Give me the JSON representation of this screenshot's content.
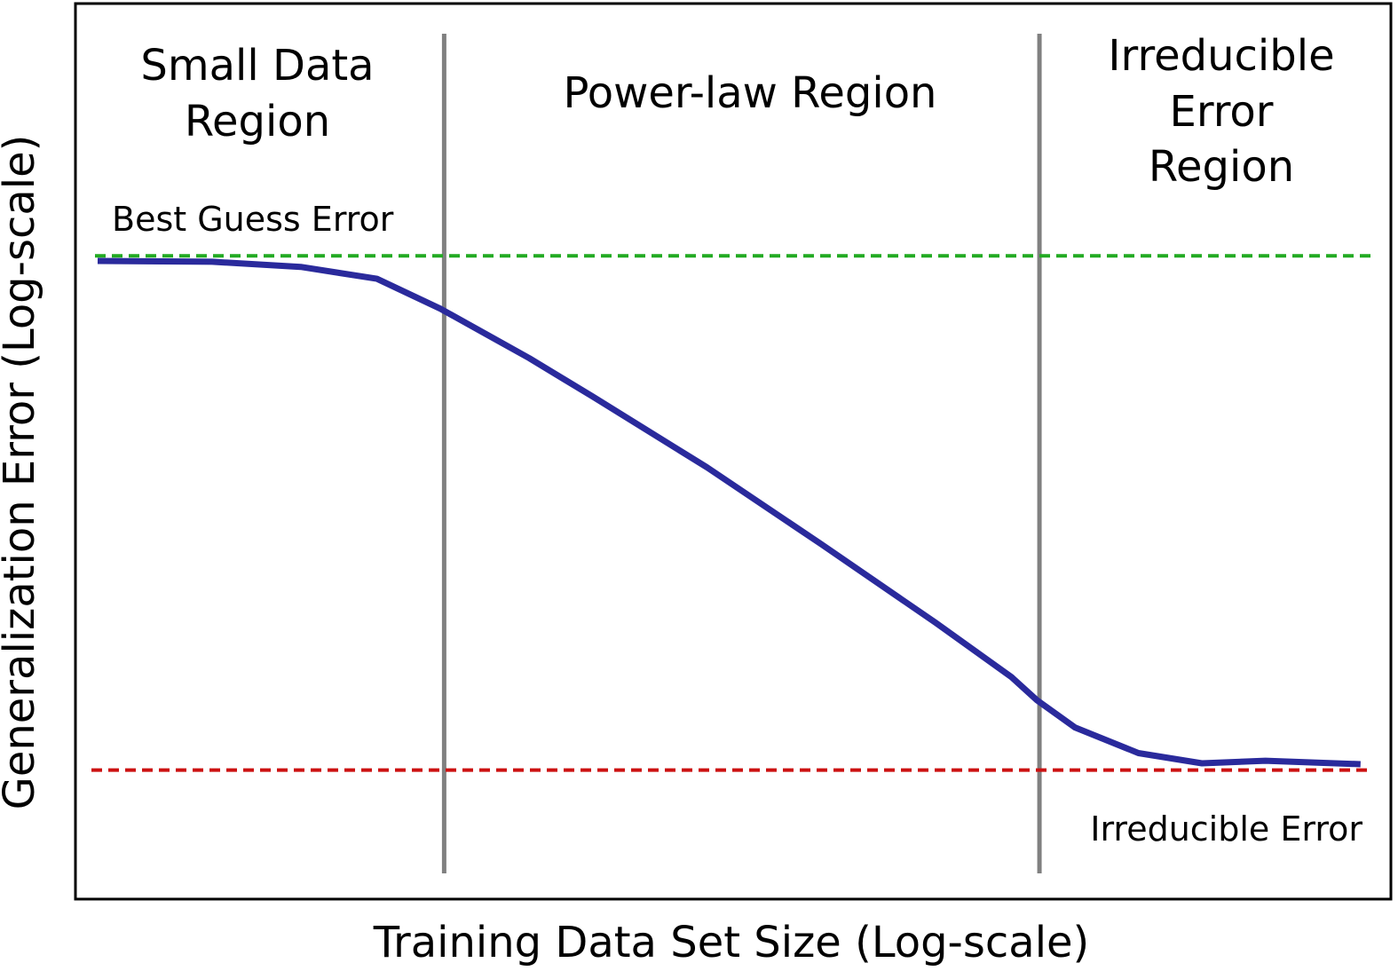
{
  "chart_data": {
    "type": "line",
    "xlabel": "Training Data Set Size (Log-scale)",
    "ylabel": "Generalization Error (Log-scale)",
    "xscale": "log",
    "yscale": "log",
    "ticks": "none",
    "grid": false,
    "legend": "none",
    "xlim": [
      0,
      100
    ],
    "ylim": [
      0,
      100
    ],
    "series": [
      {
        "color": "#2a2a9c",
        "x": [
          0,
          9,
          16,
          22,
          27,
          34,
          39,
          48,
          57,
          66,
          72,
          74,
          77,
          82,
          87,
          92,
          99.5
        ],
        "y": [
          71.7,
          71.6,
          71.0,
          69.6,
          66.1,
          60.3,
          55.8,
          47.5,
          38.5,
          29.3,
          22.9,
          20.2,
          17.0,
          14.0,
          12.8,
          13.1,
          12.7
        ]
      }
    ],
    "reference_lines": [
      {
        "label": "Best Guess Error",
        "y": 72.3,
        "color": "#22aa22",
        "style": "dashed"
      },
      {
        "label": "Irreducible Error",
        "y": 12.0,
        "color": "#cc1111",
        "style": "dashed"
      }
    ],
    "region_boundaries": [
      {
        "x": 27.3,
        "color": "#808080"
      },
      {
        "x": 74.2,
        "color": "#808080"
      }
    ],
    "regions": [
      {
        "lines": [
          "Small Data",
          "Region"
        ]
      },
      {
        "lines": [
          "Power-law Region"
        ]
      },
      {
        "lines": [
          "Irreducible",
          "Error",
          "Region"
        ]
      }
    ]
  }
}
